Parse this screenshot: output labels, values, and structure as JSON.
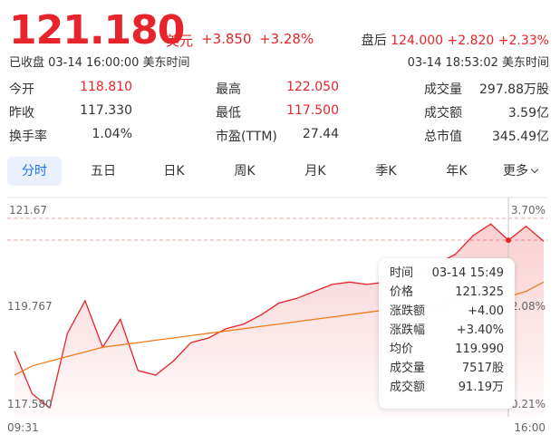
{
  "quote": {
    "price": "121.180",
    "currency": "美元",
    "change": "+3.850",
    "change_pct": "+3.28%",
    "after_hours_label": "盘后",
    "after_hours_price": "124.000",
    "after_hours_change": "+2.820",
    "after_hours_pct": "+2.33%",
    "status": "已收盘 03-14 16:00:00 美东时间",
    "after_hours_time": "03-14 18:53:02 美东时间"
  },
  "stats": {
    "open_label": "今开",
    "open": "118.810",
    "high_label": "最高",
    "high": "122.050",
    "volume_label": "成交量",
    "volume": "297.88万股",
    "prev_close_label": "昨收",
    "prev_close": "117.330",
    "low_label": "最低",
    "low": "117.500",
    "turnover_label": "成交额",
    "turnover": "3.59亿",
    "turnover_rate_label": "换手率",
    "turnover_rate": "1.04%",
    "pe_label": "市盈(TTM)",
    "pe": "27.44",
    "market_cap_label": "总市值",
    "market_cap": "345.49亿"
  },
  "tabs": [
    {
      "label": "分时",
      "active": true
    },
    {
      "label": "五日"
    },
    {
      "label": "日K"
    },
    {
      "label": "周K"
    },
    {
      "label": "月K"
    },
    {
      "label": "季K"
    },
    {
      "label": "年K"
    },
    {
      "label": "更多"
    }
  ],
  "colors": {
    "up": "#e5242b",
    "avg": "#f07c1b",
    "active_tab": "#1f6feb"
  },
  "chart": {
    "y_top": "121.67",
    "y_mid": "119.767",
    "y_bottom": "117.580",
    "pct_top": "3.70%",
    "pct_mid": "2.08%",
    "pct_bottom": "0.21%",
    "x_start": "09:31",
    "x_end": "16:00"
  },
  "tooltip": {
    "time_label": "时间",
    "time": "03-14 15:49",
    "price_label": "价格",
    "price": "121.325",
    "change_label": "涨跌额",
    "change": "+4.00",
    "pct_label": "涨跌幅",
    "pct": "+3.40%",
    "avg_label": "均价",
    "avg": "119.990",
    "vol_label": "成交量",
    "vol": "7517股",
    "amount_label": "成交额",
    "amount": "91.19万"
  },
  "chart_data": {
    "type": "line",
    "x_range": [
      "09:31",
      "16:00"
    ],
    "ylim": [
      117.58,
      121.67
    ],
    "series": [
      {
        "values": [
          118.81,
          117.9,
          117.6,
          119.2,
          119.9,
          118.9,
          119.5,
          118.4,
          118.3,
          118.6,
          119.0,
          119.1,
          119.3,
          119.4,
          119.6,
          119.85,
          119.95,
          120.1,
          120.25,
          120.3,
          120.25,
          120.3,
          120.35,
          120.5,
          120.7,
          120.9,
          121.3,
          121.55,
          121.2,
          121.5,
          121.18
        ]
      },
      {
        "values": [
          118.3,
          118.5,
          118.6,
          118.7,
          118.8,
          118.9,
          118.95,
          119.0,
          119.05,
          119.1,
          119.15,
          119.2,
          119.25,
          119.3,
          119.35,
          119.4,
          119.45,
          119.5,
          119.55,
          119.6,
          119.65,
          119.7,
          119.72,
          119.75,
          119.8,
          119.85,
          119.9,
          119.95,
          119.99,
          120.1,
          120.3
        ]
      }
    ]
  }
}
